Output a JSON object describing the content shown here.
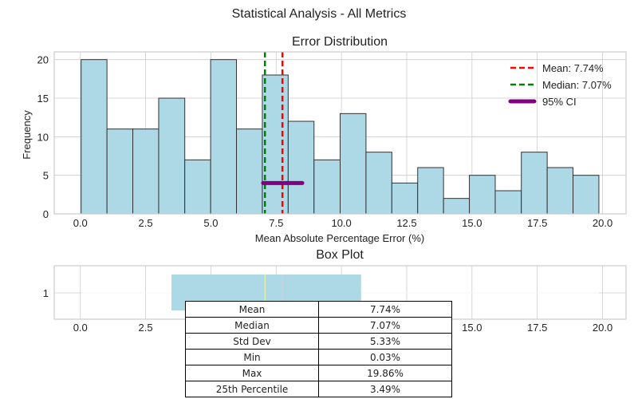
{
  "figure": {
    "suptitle": "Statistical Analysis - All Metrics"
  },
  "colors": {
    "bar": "#add8e6",
    "bar_edge": "#333333",
    "mean": "#ff0000",
    "median": "#008000",
    "ci": "#800080",
    "grid": "#cccccc"
  },
  "chart_data": [
    {
      "type": "histogram",
      "title": "Error Distribution",
      "xlabel": "Mean Absolute Percentage Error (%)",
      "ylabel": "Frequency",
      "bin_edges": [
        0.03,
        1.02,
        2.01,
        3.0,
        4.0,
        4.99,
        5.98,
        6.97,
        7.96,
        8.95,
        9.95,
        10.94,
        11.93,
        12.92,
        13.91,
        14.9,
        15.89,
        16.89,
        17.88,
        18.87,
        19.86
      ],
      "counts": [
        20,
        11,
        11,
        15,
        7,
        20,
        11,
        18,
        12,
        7,
        13,
        8,
        4,
        6,
        2,
        5,
        3,
        8,
        6,
        5
      ],
      "xlim": [
        -1.0,
        20.9
      ],
      "ylim": [
        0,
        21
      ],
      "xticks": [
        0.0,
        2.5,
        5.0,
        7.5,
        10.0,
        12.5,
        15.0,
        17.5,
        20.0
      ],
      "xtick_labels": [
        "0.0",
        "2.5",
        "5.0",
        "7.5",
        "10.0",
        "12.5",
        "15.0",
        "17.5",
        "20.0"
      ],
      "yticks": [
        0,
        5,
        10,
        15,
        20
      ],
      "ytick_labels": [
        "0",
        "5",
        "10",
        "15",
        "20"
      ],
      "mean": 7.74,
      "median": 7.07,
      "ci": {
        "low": 7.0,
        "high": 8.5,
        "y": 4
      },
      "legend": {
        "position": "top-right",
        "entries": [
          {
            "label": "Mean: 7.74%",
            "style": "dashed",
            "color": "#ff0000"
          },
          {
            "label": "Median: 7.07%",
            "style": "dashed",
            "color": "#008000"
          },
          {
            "label": "95% CI",
            "style": "solid-thick",
            "color": "#800080"
          }
        ]
      },
      "grid": true
    },
    {
      "type": "box",
      "title": "Box Plot",
      "orientation": "horizontal",
      "xlim": [
        -1.0,
        20.9
      ],
      "xticks": [
        0.0,
        2.5,
        5.0,
        7.5,
        10.0,
        12.5,
        15.0,
        17.5,
        20.0
      ],
      "xtick_labels": [
        "0.0",
        "2.5",
        "5.0",
        "7.5",
        "10.0",
        "12.5",
        "15.0",
        "17.5",
        "20.0"
      ],
      "ytick_labels": [
        "1"
      ],
      "q1": 3.49,
      "median": 7.07,
      "mean": 7.74,
      "q3": 10.75,
      "whisker_low": 0.03,
      "whisker_high": 19.86,
      "grid": true
    }
  ],
  "stats_table": {
    "rows": [
      {
        "label": "Mean",
        "value": "7.74%"
      },
      {
        "label": "Median",
        "value": "7.07%"
      },
      {
        "label": "Std Dev",
        "value": "5.33%"
      },
      {
        "label": "Min",
        "value": "0.03%"
      },
      {
        "label": "Max",
        "value": "19.86%"
      },
      {
        "label": "25th Percentile",
        "value": "3.49%"
      }
    ]
  }
}
